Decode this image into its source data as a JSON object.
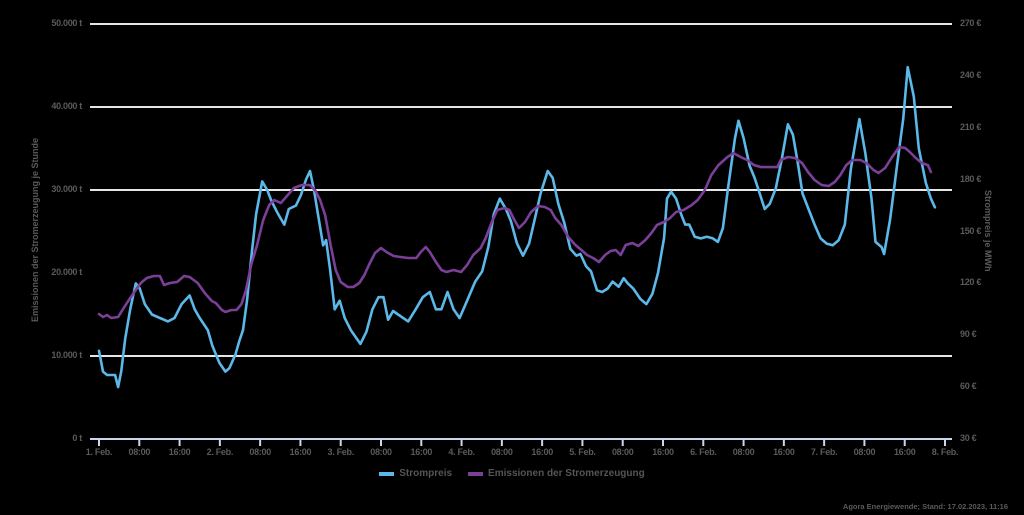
{
  "chart_data": {
    "type": "line",
    "title": "",
    "ylabel_left": "Emissionen der Stromerzeugung je Stunde",
    "ylabel_right": "Strompreis je MWh",
    "y_left": {
      "ticks": [
        0,
        10000,
        20000,
        30000,
        40000,
        50000
      ],
      "tick_labels": [
        "0 t",
        "10.000 t",
        "20.000 t",
        "30.000 t",
        "40.000 t",
        "50.000 t"
      ],
      "range": [
        0,
        50000
      ]
    },
    "y_right": {
      "ticks": [
        30,
        60,
        90,
        120,
        150,
        180,
        210,
        240,
        270
      ],
      "tick_labels": [
        "30 €",
        "60 €",
        "90 €",
        "120 €",
        "150 €",
        "180 €",
        "210 €",
        "240 €",
        "270 €"
      ],
      "range": [
        30,
        270
      ]
    },
    "x": {
      "range_hours": [
        0,
        168
      ],
      "tick_hours": [
        0,
        8,
        16,
        24,
        32,
        40,
        48,
        56,
        64,
        72,
        80,
        88,
        96,
        104,
        112,
        120,
        128,
        136,
        144,
        152,
        160,
        168
      ],
      "tick_labels": [
        "1. Feb.",
        "08:00",
        "16:00",
        "2. Feb.",
        "08:00",
        "16:00",
        "3. Feb.",
        "08:00",
        "16:00",
        "4. Feb.",
        "08:00",
        "16:00",
        "5. Feb.",
        "08:00",
        "16:00",
        "6. Feb.",
        "08:00",
        "16:00",
        "7. Feb.",
        "08:00",
        "16:00",
        "8. Feb."
      ]
    },
    "grid": {
      "horizontal": true,
      "gridline_values_left": [
        10000,
        30000,
        40000,
        50000
      ]
    },
    "legend_position": "bottom",
    "series": [
      {
        "name": "Strompreis",
        "axis": "right",
        "color": "#5bb8e8",
        "unit": "€/MWh",
        "points": [
          [
            0,
            81
          ],
          [
            0.8,
            69
          ],
          [
            1.6,
            67
          ],
          [
            2.4,
            67
          ],
          [
            3.2,
            67
          ],
          [
            3.8,
            60
          ],
          [
            4.4,
            69
          ],
          [
            5.2,
            88
          ],
          [
            6.2,
            105
          ],
          [
            7.3,
            120
          ],
          [
            8.1,
            117
          ],
          [
            9.1,
            108
          ],
          [
            10.5,
            102
          ],
          [
            12.1,
            100
          ],
          [
            13.7,
            98
          ],
          [
            15.0,
            100
          ],
          [
            16.4,
            108
          ],
          [
            18.0,
            113
          ],
          [
            19.0,
            105
          ],
          [
            20.0,
            100
          ],
          [
            21.6,
            93
          ],
          [
            22.5,
            84
          ],
          [
            23.9,
            74
          ],
          [
            25.1,
            69
          ],
          [
            25.9,
            71
          ],
          [
            27.1,
            79
          ],
          [
            27.9,
            87
          ],
          [
            28.6,
            93
          ],
          [
            29.4,
            110
          ],
          [
            30.2,
            134
          ],
          [
            31.2,
            160
          ],
          [
            32.4,
            179
          ],
          [
            33.4,
            174
          ],
          [
            34.2,
            168
          ],
          [
            35.4,
            161
          ],
          [
            36.8,
            154
          ],
          [
            37.7,
            163
          ],
          [
            39.1,
            165
          ],
          [
            40.1,
            171
          ],
          [
            41.1,
            180
          ],
          [
            41.9,
            185
          ],
          [
            42.7,
            174
          ],
          [
            43.7,
            156
          ],
          [
            44.5,
            142
          ],
          [
            45.1,
            145
          ],
          [
            45.9,
            128
          ],
          [
            46.8,
            105
          ],
          [
            47.8,
            110
          ],
          [
            48.8,
            100
          ],
          [
            50.0,
            93
          ],
          [
            51.2,
            88
          ],
          [
            51.9,
            85
          ],
          [
            53.1,
            92
          ],
          [
            54.3,
            105
          ],
          [
            55.5,
            112
          ],
          [
            56.5,
            112
          ],
          [
            57.4,
            99
          ],
          [
            58.4,
            104
          ],
          [
            59.4,
            102
          ],
          [
            61.4,
            98
          ],
          [
            62.9,
            105
          ],
          [
            64.3,
            112
          ],
          [
            65.7,
            115
          ],
          [
            66.9,
            105
          ],
          [
            68.0,
            105
          ],
          [
            69.2,
            115
          ],
          [
            70.4,
            105
          ],
          [
            71.6,
            100
          ],
          [
            73.1,
            110
          ],
          [
            74.7,
            121
          ],
          [
            76.1,
            127
          ],
          [
            77.3,
            141
          ],
          [
            78.4,
            160
          ],
          [
            79.6,
            169
          ],
          [
            80.8,
            163
          ],
          [
            81.8,
            156
          ],
          [
            83.0,
            143
          ],
          [
            84.2,
            136
          ],
          [
            85.4,
            143
          ],
          [
            86.6,
            158
          ],
          [
            87.7,
            172
          ],
          [
            89.1,
            185
          ],
          [
            90.1,
            181
          ],
          [
            91.2,
            166
          ],
          [
            92.4,
            155
          ],
          [
            93.6,
            140
          ],
          [
            94.8,
            136
          ],
          [
            95.6,
            137
          ],
          [
            96.7,
            130
          ],
          [
            97.7,
            127
          ],
          [
            98.9,
            116
          ],
          [
            99.9,
            115
          ],
          [
            101.0,
            117
          ],
          [
            102.0,
            121
          ],
          [
            103.2,
            118
          ],
          [
            104.2,
            123
          ],
          [
            105.0,
            120
          ],
          [
            106.1,
            117
          ],
          [
            107.5,
            111
          ],
          [
            108.7,
            108
          ],
          [
            109.9,
            114
          ],
          [
            111.0,
            126
          ],
          [
            112.2,
            146
          ],
          [
            112.8,
            169
          ],
          [
            113.6,
            173
          ],
          [
            114.6,
            169
          ],
          [
            115.6,
            160
          ],
          [
            116.4,
            154
          ],
          [
            117.2,
            154
          ],
          [
            118.3,
            147
          ],
          [
            119.5,
            146
          ],
          [
            120.7,
            147
          ],
          [
            121.9,
            146
          ],
          [
            122.9,
            144
          ],
          [
            123.9,
            152
          ],
          [
            124.9,
            175
          ],
          [
            126.3,
            204
          ],
          [
            127.0,
            214
          ],
          [
            128.0,
            204
          ],
          [
            129.2,
            188
          ],
          [
            130.2,
            181
          ],
          [
            131.2,
            172
          ],
          [
            132.2,
            163
          ],
          [
            133.2,
            166
          ],
          [
            134.4,
            175
          ],
          [
            135.6,
            192
          ],
          [
            136.8,
            212
          ],
          [
            137.8,
            206
          ],
          [
            138.8,
            189
          ],
          [
            139.7,
            172
          ],
          [
            140.9,
            163
          ],
          [
            142.1,
            154
          ],
          [
            143.3,
            146
          ],
          [
            144.5,
            143
          ],
          [
            145.7,
            142
          ],
          [
            146.9,
            145
          ],
          [
            148.1,
            154
          ],
          [
            149.3,
            186
          ],
          [
            151.0,
            215
          ],
          [
            152.2,
            195
          ],
          [
            153.4,
            169
          ],
          [
            154.2,
            144
          ],
          [
            155.4,
            141
          ],
          [
            155.9,
            137
          ],
          [
            157.1,
            157
          ],
          [
            158.5,
            189
          ],
          [
            159.7,
            215
          ],
          [
            160.6,
            245
          ],
          [
            161.8,
            228
          ],
          [
            162.8,
            198
          ],
          [
            164.2,
            178
          ],
          [
            165.2,
            169
          ],
          [
            166.0,
            164
          ]
        ]
      },
      {
        "name": "Emissionen der Stromerzeugung",
        "axis": "left",
        "color": "#7b3f98",
        "unit": "t",
        "points": [
          [
            0,
            15060
          ],
          [
            0.8,
            14700
          ],
          [
            1.6,
            14940
          ],
          [
            2.4,
            14580
          ],
          [
            3.8,
            14700
          ],
          [
            4.9,
            15780
          ],
          [
            6.2,
            16990
          ],
          [
            7.3,
            17950
          ],
          [
            8.3,
            18790
          ],
          [
            9.5,
            19400
          ],
          [
            10.9,
            19640
          ],
          [
            12.1,
            19640
          ],
          [
            12.9,
            18550
          ],
          [
            14.1,
            18790
          ],
          [
            15.5,
            18910
          ],
          [
            16.9,
            19640
          ],
          [
            18.0,
            19520
          ],
          [
            19.6,
            18790
          ],
          [
            21.0,
            17590
          ],
          [
            22.4,
            16630
          ],
          [
            23.2,
            16390
          ],
          [
            24.4,
            15540
          ],
          [
            25.1,
            15300
          ],
          [
            26.3,
            15540
          ],
          [
            27.3,
            15540
          ],
          [
            28.3,
            16270
          ],
          [
            29.2,
            17950
          ],
          [
            30.2,
            20960
          ],
          [
            31.4,
            23370
          ],
          [
            32.6,
            26390
          ],
          [
            33.8,
            28190
          ],
          [
            34.8,
            28790
          ],
          [
            36.1,
            28430
          ],
          [
            37.5,
            29400
          ],
          [
            38.7,
            30240
          ],
          [
            40.3,
            30600
          ],
          [
            41.8,
            30600
          ],
          [
            42.9,
            30000
          ],
          [
            43.9,
            28790
          ],
          [
            44.9,
            26990
          ],
          [
            46.0,
            23370
          ],
          [
            47.0,
            20360
          ],
          [
            48.0,
            18910
          ],
          [
            49.4,
            18310
          ],
          [
            50.5,
            18310
          ],
          [
            51.7,
            18790
          ],
          [
            52.7,
            19760
          ],
          [
            53.6,
            20960
          ],
          [
            54.8,
            22410
          ],
          [
            56.0,
            23010
          ],
          [
            57.1,
            22530
          ],
          [
            58.5,
            22050
          ],
          [
            59.9,
            21930
          ],
          [
            61.4,
            21810
          ],
          [
            63.0,
            21810
          ],
          [
            63.9,
            22530
          ],
          [
            64.9,
            23130
          ],
          [
            65.7,
            22530
          ],
          [
            66.9,
            21330
          ],
          [
            68.0,
            20360
          ],
          [
            69.0,
            20120
          ],
          [
            70.4,
            20360
          ],
          [
            71.9,
            20120
          ],
          [
            73.1,
            20960
          ],
          [
            74.3,
            22170
          ],
          [
            75.8,
            23010
          ],
          [
            76.8,
            24220
          ],
          [
            78.0,
            26140
          ],
          [
            79.1,
            27590
          ],
          [
            80.5,
            27830
          ],
          [
            81.5,
            27590
          ],
          [
            82.5,
            26390
          ],
          [
            83.4,
            25420
          ],
          [
            84.6,
            26140
          ],
          [
            85.8,
            27350
          ],
          [
            87.2,
            28070
          ],
          [
            88.5,
            27950
          ],
          [
            89.7,
            27590
          ],
          [
            90.6,
            26630
          ],
          [
            91.8,
            25780
          ],
          [
            93.2,
            24340
          ],
          [
            94.6,
            23370
          ],
          [
            95.8,
            22770
          ],
          [
            96.9,
            22170
          ],
          [
            98.1,
            21810
          ],
          [
            99.3,
            21330
          ],
          [
            100.5,
            22170
          ],
          [
            101.6,
            22650
          ],
          [
            102.6,
            22770
          ],
          [
            103.6,
            22170
          ],
          [
            104.6,
            23370
          ],
          [
            105.9,
            23610
          ],
          [
            107.1,
            23250
          ],
          [
            108.5,
            23980
          ],
          [
            109.7,
            24820
          ],
          [
            110.8,
            25780
          ],
          [
            112.2,
            26140
          ],
          [
            113.4,
            26630
          ],
          [
            114.6,
            27350
          ],
          [
            116.1,
            27590
          ],
          [
            117.7,
            28190
          ],
          [
            118.9,
            28790
          ],
          [
            120.3,
            29990
          ],
          [
            121.6,
            31800
          ],
          [
            123.0,
            33000
          ],
          [
            124.8,
            33970
          ],
          [
            126.0,
            34450
          ],
          [
            127.4,
            33970
          ],
          [
            128.7,
            33610
          ],
          [
            130.1,
            33000
          ],
          [
            131.5,
            32760
          ],
          [
            132.9,
            32760
          ],
          [
            134.7,
            32760
          ],
          [
            135.4,
            33610
          ],
          [
            136.8,
            33970
          ],
          [
            138.2,
            33850
          ],
          [
            139.6,
            33250
          ],
          [
            140.8,
            32170
          ],
          [
            142.1,
            31200
          ],
          [
            143.5,
            30600
          ],
          [
            144.9,
            30480
          ],
          [
            146.1,
            30960
          ],
          [
            147.2,
            31800
          ],
          [
            148.4,
            33000
          ],
          [
            149.6,
            33610
          ],
          [
            151.2,
            33610
          ],
          [
            152.4,
            33250
          ],
          [
            153.8,
            32410
          ],
          [
            154.8,
            32050
          ],
          [
            156.1,
            32650
          ],
          [
            157.5,
            33970
          ],
          [
            158.9,
            35180
          ],
          [
            160.1,
            35060
          ],
          [
            161.0,
            34580
          ],
          [
            162.2,
            33850
          ],
          [
            163.4,
            33250
          ],
          [
            164.6,
            33000
          ],
          [
            165.2,
            32170
          ]
        ]
      }
    ]
  },
  "legend": {
    "items": [
      {
        "label": "Strompreis",
        "color": "#5bb8e8"
      },
      {
        "label": "Emissionen der Stromerzeugung",
        "color": "#7b3f98"
      }
    ]
  },
  "source": "Agora Energiewende; Stand: 17.02.2023, 11:16"
}
